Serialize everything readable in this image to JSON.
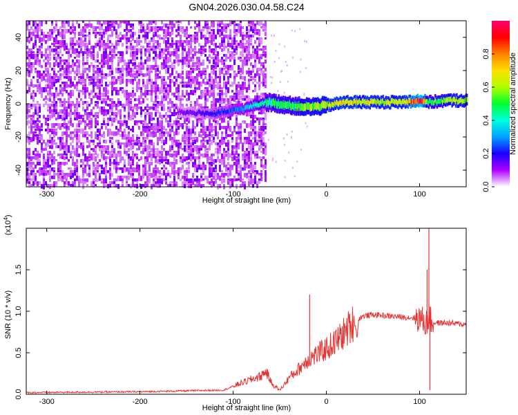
{
  "chart_data": [
    {
      "type": "heatmap",
      "title": "GN04.2026.030.04.58.C24",
      "xlabel": "Height of straight line (km)",
      "ylabel": "Frequency (Hz)",
      "xlim": [
        -322,
        150
      ],
      "ylim": [
        -50,
        50
      ],
      "xticks": [
        "-300",
        "-200",
        "-100",
        "0",
        "100"
      ],
      "xtick_values": [
        -300,
        -200,
        -100,
        0,
        100
      ],
      "yticks": [
        "-40",
        "-20",
        "0",
        "20",
        "40"
      ],
      "ytick_values": [
        -40,
        -20,
        0,
        20,
        40
      ],
      "colorbar": {
        "label": "Normalized spectral amplitude",
        "range": [
          0,
          1
        ],
        "ticks": [
          "0.0",
          "0.2",
          "0.4",
          "0.6",
          "0.8"
        ],
        "tick_values": [
          0,
          0.2,
          0.4,
          0.6,
          0.8
        ],
        "colors": [
          "#ffffff",
          "#b000ff",
          "#1800ff",
          "#00a0ff",
          "#00ffe0",
          "#00ff30",
          "#b0ff00",
          "#ffe000",
          "#ff8000",
          "#ff0000",
          "#ff0070"
        ]
      },
      "noise_region_x": [
        -322,
        -65
      ],
      "ridge": {
        "x": [
          -160,
          -120,
          -90,
          -65,
          -40,
          -20,
          0,
          20,
          40,
          60,
          80,
          100,
          110,
          130,
          150
        ],
        "y": [
          -5,
          -6,
          -3,
          1,
          -1,
          -2,
          -1,
          1,
          1,
          1,
          1,
          2,
          1,
          2,
          2
        ],
        "amplitude": [
          0.12,
          0.2,
          0.3,
          0.45,
          0.5,
          0.55,
          0.6,
          0.7,
          0.65,
          0.6,
          0.65,
          0.95,
          0.45,
          0.6,
          0.6
        ]
      },
      "grid": false
    },
    {
      "type": "line",
      "ylabel": "SNR (10 * v/v)",
      "y_multiplier": "(x10",
      "y_multiplier_exponent": "4",
      "xlabel": "Height of straight line (km)",
      "xlim": [
        -322,
        150
      ],
      "ylim": [
        0,
        2.0
      ],
      "xticks": [
        "-300",
        "-200",
        "-100",
        "0",
        "100"
      ],
      "xtick_values": [
        -300,
        -200,
        -100,
        0,
        100
      ],
      "yticks": [
        "0.0",
        "0.5",
        "1.0",
        "1.5"
      ],
      "ytick_values": [
        0,
        0.5,
        1.0,
        1.5
      ],
      "series": [
        {
          "color": "#e8322f",
          "x": [
            -322,
            -200,
            -110,
            -95,
            -80,
            -70,
            -65,
            -58,
            -50,
            -45,
            -40,
            -30,
            -20,
            -15,
            -10,
            0,
            10,
            20,
            30,
            33,
            35,
            40,
            50,
            60,
            80,
            100,
            108,
            110,
            112,
            115,
            130,
            150
          ],
          "y": [
            0.02,
            0.03,
            0.05,
            0.12,
            0.18,
            0.22,
            0.28,
            0.12,
            0.05,
            0.12,
            0.2,
            0.3,
            0.42,
            0.45,
            0.48,
            0.55,
            0.63,
            0.75,
            0.88,
            0.7,
            0.92,
            0.94,
            0.96,
            0.95,
            0.93,
            0.92,
            0.85,
            0.95,
            0.88,
            0.86,
            0.86,
            0.84
          ]
        }
      ],
      "spikes": [
        {
          "x": -18,
          "y": 1.2
        },
        {
          "x": 108,
          "y": 1.5
        },
        {
          "x": 110,
          "y": 2.0
        },
        {
          "x": 111,
          "y": 0.05
        }
      ],
      "grid": false
    }
  ]
}
